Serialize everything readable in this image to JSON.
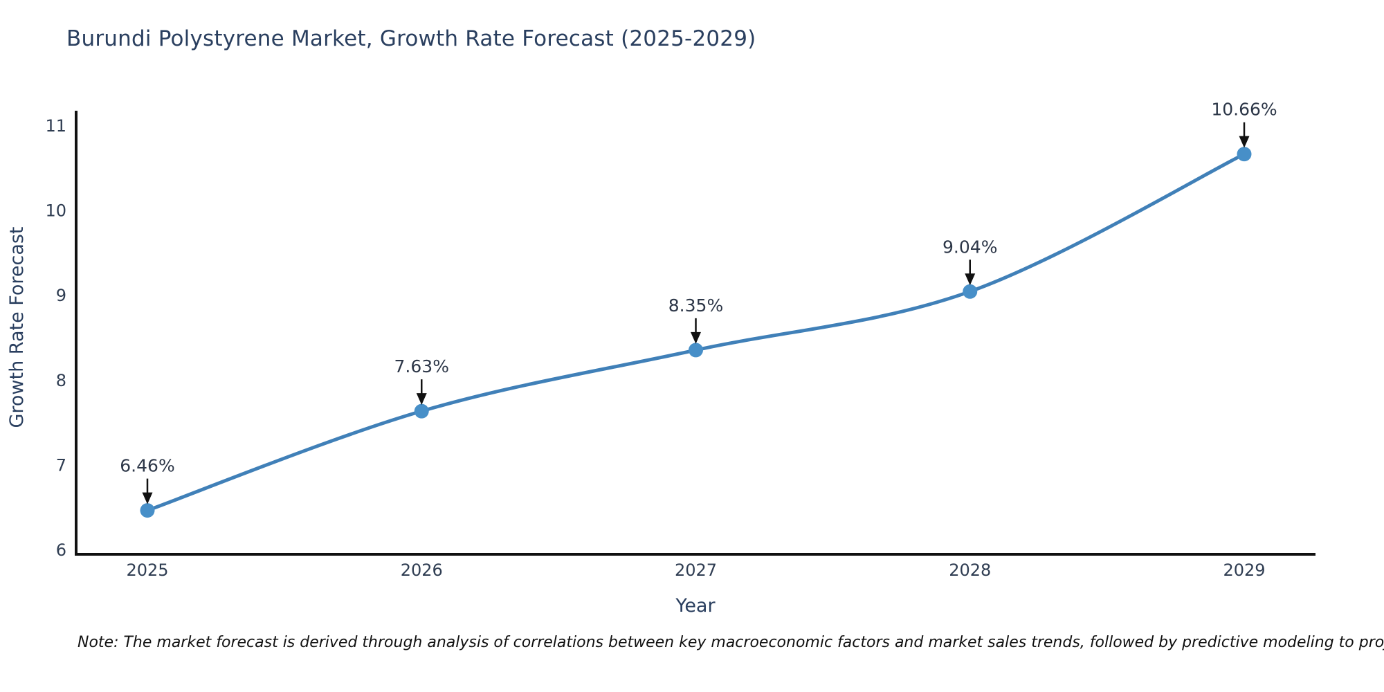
{
  "page": {
    "title": "Burundi Polystyrene Market, Growth Rate Forecast (2025-2029)",
    "note": "Note: The market forecast is derived through analysis of correlations between key macroeconomic factors and market sales trends, followed by predictive modeling to project future sales"
  },
  "chart_data": {
    "type": "line",
    "title": "Burundi Polystyrene Market, Growth Rate Forecast (2025-2029)",
    "xlabel": "Year",
    "ylabel": "Growth Rate Forecast",
    "categories": [
      "2025",
      "2026",
      "2027",
      "2028",
      "2029"
    ],
    "series": [
      {
        "name": "Growth Rate Forecast",
        "values": [
          6.46,
          7.63,
          8.35,
          9.04,
          10.66
        ],
        "point_labels": [
          "6.46%",
          "7.63%",
          "8.35%",
          "9.04%",
          "10.66%"
        ]
      }
    ],
    "ylim": [
      6,
      11
    ],
    "yticks": [
      6,
      7,
      8,
      9,
      10,
      11
    ],
    "line_shape": "spline",
    "grid": false,
    "legend_position": "none",
    "annotation_style": "value labels with downward arrows onto markers",
    "colors": {
      "line": "#4080b8",
      "marker": "#478fc8",
      "axis": "#111111",
      "title_text": "#2a3f5f",
      "tick_text": "#2f3d52",
      "annotation_text": "#2d3748",
      "arrow": "#111111",
      "note_text": "#111111"
    }
  }
}
